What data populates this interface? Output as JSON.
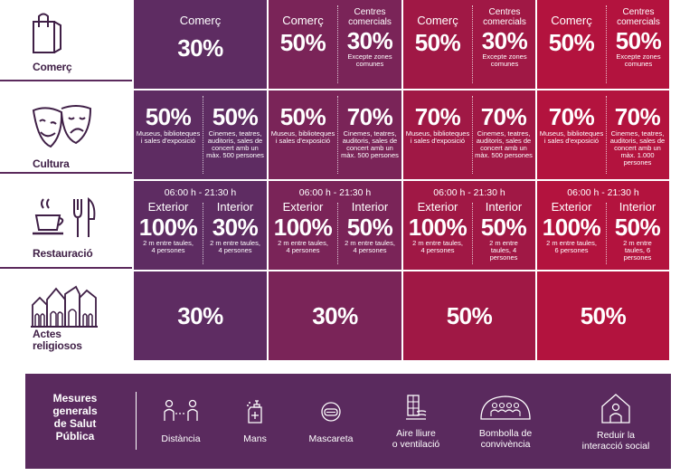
{
  "rows": {
    "comerc": {
      "label": "Comerç",
      "cols": [
        {
          "a_title": "Comerç",
          "a_pct": "30%"
        },
        {
          "a_title": "Comerç",
          "a_pct": "50%",
          "b_title": "Centres comercials",
          "b_pct": "30%",
          "b_note": "Excepte zones comunes"
        },
        {
          "a_title": "Comerç",
          "a_pct": "50%",
          "b_title": "Centres comercials",
          "b_pct": "30%",
          "b_note": "Excepte zones comunes"
        },
        {
          "a_title": "Comerç",
          "a_pct": "50%",
          "b_title": "Centres comercials",
          "b_pct": "50%",
          "b_note": "Excepte zones comunes"
        }
      ]
    },
    "cultura": {
      "label": "Cultura",
      "cols": [
        {
          "a_pct": "50%",
          "a_note": "Museus, biblioteques i sales d'exposició",
          "b_pct": "50%",
          "b_note": "Cinemes, teatres, auditoris, sales de concert amb un màx. 500 persones"
        },
        {
          "a_pct": "50%",
          "a_note": "Museus, biblioteques i sales d'exposició",
          "b_pct": "70%",
          "b_note": "Cinemes, teatres, auditoris, sales de concert amb un màx. 500 persones"
        },
        {
          "a_pct": "70%",
          "a_note": "Museus, biblioteques i sales d'exposició",
          "b_pct": "70%",
          "b_note": "Cinemes, teatres, auditoris, sales de concert amb un màx. 500 persones"
        },
        {
          "a_pct": "70%",
          "a_note": "Museus, biblioteques i sales d'exposició",
          "b_pct": "70%",
          "b_note": "Cinemes, teatres, auditoris, sales de concert amb un màx. 1.000 persones"
        }
      ]
    },
    "restauracio": {
      "label": "Restauració",
      "cols": [
        {
          "hours": "06:00 h - 21:30 h",
          "a_title": "Exterior",
          "a_pct": "100%",
          "a_note": "2 m entre taules, 4 persones",
          "b_title": "Interior",
          "b_pct": "30%",
          "b_note": "2 m entre taules, 4 persones"
        },
        {
          "hours": "06:00 h - 21:30 h",
          "a_title": "Exterior",
          "a_pct": "100%",
          "a_note": "2 m entre taules, 4 persones",
          "b_title": "Interior",
          "b_pct": "50%",
          "b_note": "2 m entre taules, 4 persones"
        },
        {
          "hours": "06:00 h - 21:30 h",
          "a_title": "Exterior",
          "a_pct": "100%",
          "a_note": "2 m entre taules, 4 persones",
          "b_title": "Interior",
          "b_pct": "50%",
          "b_note": "2 m entre taules, 4 persones"
        },
        {
          "hours": "06:00 h - 21:30 h",
          "a_title": "Exterior",
          "a_pct": "100%",
          "a_note": "2 m entre taules, 6 persones",
          "b_title": "Interior",
          "b_pct": "50%",
          "b_note": "2 m entre taules, 6 persones"
        }
      ]
    },
    "religiosos": {
      "label_l1": "Actes",
      "label_l2": "religiosos",
      "cols": [
        {
          "pct": "30%"
        },
        {
          "pct": "30%"
        },
        {
          "pct": "50%"
        },
        {
          "pct": "50%"
        }
      ]
    }
  },
  "footer": {
    "title_l1": "Mesures",
    "title_l2": "generals",
    "title_l3": "de Salut",
    "title_l4": "Pública",
    "items": [
      {
        "l1": "Distància",
        "l2": ""
      },
      {
        "l1": "Mans",
        "l2": ""
      },
      {
        "l1": "Mascareta",
        "l2": ""
      },
      {
        "l1": "Aire lliure",
        "l2": "o ventilació"
      },
      {
        "l1": "Bombolla de",
        "l2": "convivència"
      },
      {
        "l1": "Reduir la",
        "l2": "interacció social"
      }
    ]
  },
  "colors": {
    "phase1": "#5e2c62",
    "phase2": "#7a2458",
    "phase3": "#a01845",
    "phase4": "#b3133e",
    "footer": "#5a2a5e"
  },
  "icons": [
    "shopping-bag-icon",
    "theatre-masks-icon",
    "coffee-cutlery-icon",
    "church-icon",
    "distance-icon",
    "hand-wash-icon",
    "mask-icon",
    "ventilation-icon",
    "bubble-group-icon",
    "house-person-icon"
  ]
}
